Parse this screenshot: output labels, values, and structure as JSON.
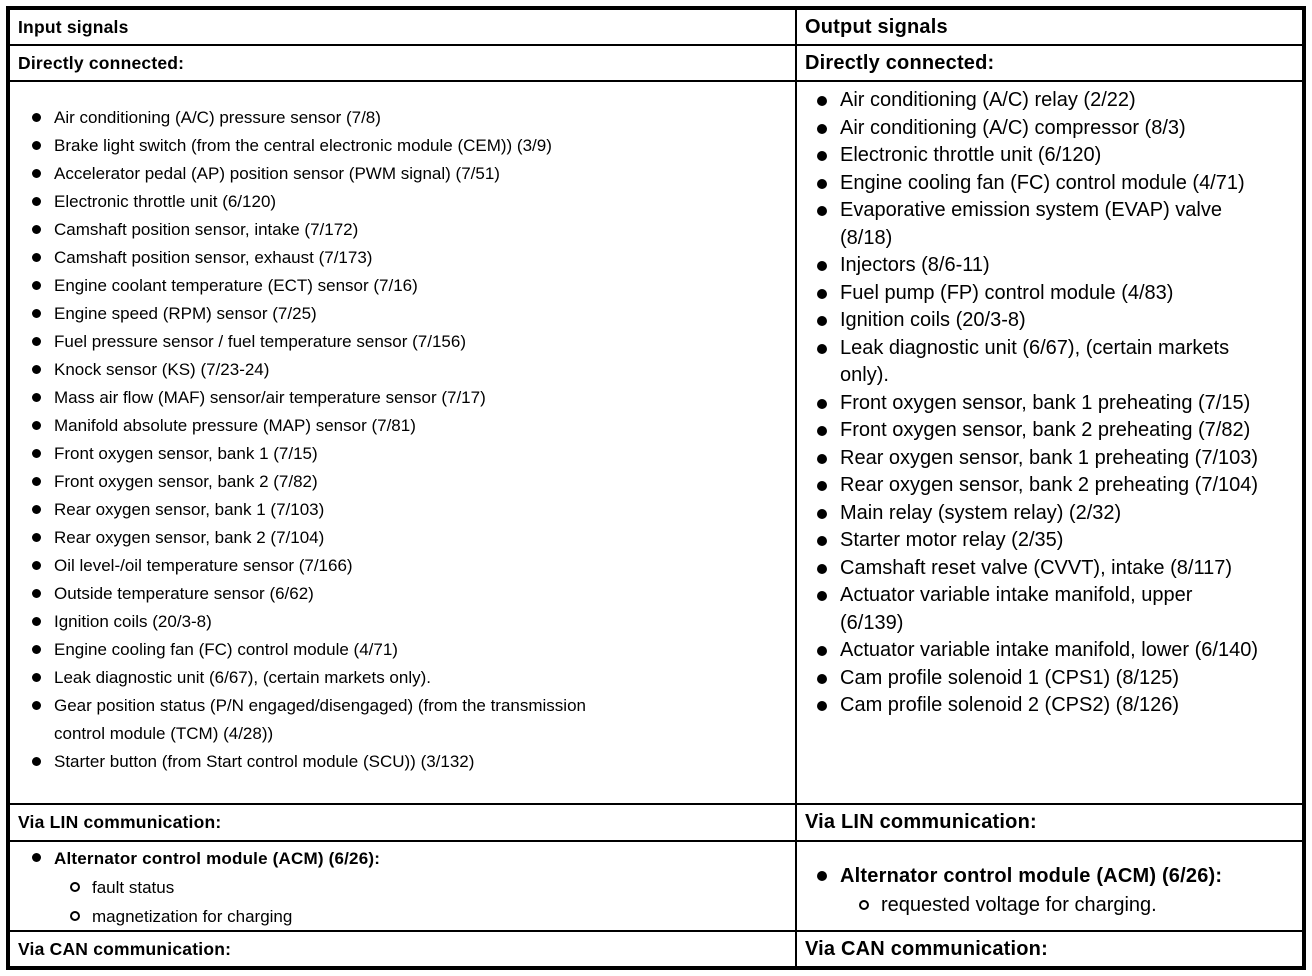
{
  "columns": [
    {
      "header": "Input signals",
      "direct_title": "Directly connected:",
      "direct_items": [
        "Air conditioning (A/C) pressure sensor (7/8)",
        "Brake light switch (from the central electronic module (CEM)) (3/9)",
        "Accelerator pedal (AP) position sensor (PWM signal) (7/51)",
        "Electronic throttle unit (6/120)",
        "Camshaft position sensor, intake (7/172)",
        "Camshaft position sensor, exhaust (7/173)",
        "Engine coolant temperature (ECT) sensor (7/16)",
        "Engine speed (RPM) sensor (7/25)",
        "Fuel pressure sensor / fuel temperature sensor (7/156)",
        "Knock sensor (KS) (7/23-24)",
        "Mass air flow (MAF) sensor/air temperature sensor (7/17)",
        "Manifold absolute pressure (MAP) sensor (7/81)",
        "Front oxygen sensor, bank 1 (7/15)",
        "Front oxygen sensor, bank 2 (7/82)",
        "Rear oxygen sensor, bank 1 (7/103)",
        "Rear oxygen sensor, bank 2 (7/104)",
        "Oil level-/oil temperature sensor (7/166)",
        "Outside temperature sensor (6/62)",
        "Ignition coils (20/3-8)",
        "Engine cooling fan (FC) control module (4/71)",
        "Leak diagnostic unit (6/67), (certain markets only).",
        "Gear position status (P/N engaged/disengaged) (from the transmission control module (TCM) (4/28))",
        "Starter button (from Start control module (SCU)) (3/132)"
      ],
      "lin_title": "Via LIN communication:",
      "lin_item": "Alternator control module (ACM) (6/26):",
      "lin_subitems": [
        "fault status",
        "magnetization for charging"
      ],
      "can_title": "Via CAN communication:"
    },
    {
      "header": "Output signals",
      "direct_title": "Directly connected:",
      "direct_items": [
        "Air conditioning (A/C) relay (2/22)",
        "Air conditioning (A/C) compressor (8/3)",
        "Electronic throttle unit (6/120)",
        "Engine cooling fan (FC) control module (4/71)",
        "Evaporative emission system (EVAP) valve (8/18)",
        "Injectors (8/6-11)",
        "Fuel pump (FP) control module (4/83)",
        "Ignition coils (20/3-8)",
        "Leak diagnostic unit (6/67), (certain markets only).",
        "Front oxygen sensor, bank 1 preheating (7/15)",
        "Front oxygen sensor, bank 2 preheating (7/82)",
        "Rear oxygen sensor, bank 1 preheating (7/103)",
        "Rear oxygen sensor, bank 2 preheating (7/104)",
        "Main relay (system relay) (2/32)",
        "Starter motor relay (2/35)",
        "Camshaft reset valve (CVVT), intake (8/117)",
        "Actuator variable intake manifold, upper (6/139)",
        "Actuator variable intake manifold, lower (6/140)",
        "Cam profile solenoid 1 (CPS1) (8/125)",
        "Cam profile solenoid 2 (CPS2) (8/126)"
      ],
      "lin_title": "Via LIN communication:",
      "lin_item": "Alternator control module (ACM) (6/26):",
      "lin_subitems": [
        "requested voltage for charging."
      ],
      "can_title": "Via CAN communication:"
    }
  ]
}
